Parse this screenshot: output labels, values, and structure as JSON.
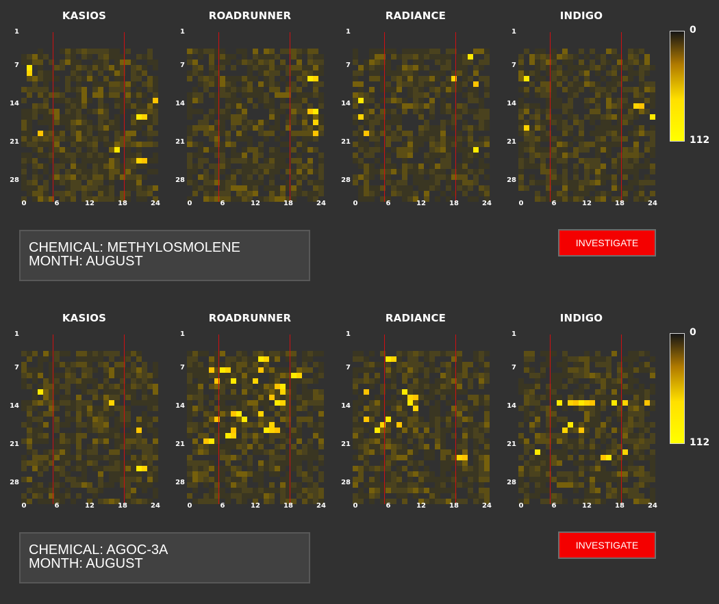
{
  "panels": [
    {
      "chemical_text": "CHEMICAL: METHYLOSMOLENE",
      "month_text": "MONTH: AUGUST",
      "button_label": "INVESTIGATE",
      "sensors": [
        {
          "name": "KASIOS",
          "hotspots": [
            [
              7,
              1
            ],
            [
              8,
              1
            ],
            [
              13,
              24
            ],
            [
              16,
              21
            ],
            [
              16,
              22
            ],
            [
              19,
              3
            ],
            [
              22,
              17
            ],
            [
              24,
              21
            ],
            [
              24,
              22
            ]
          ]
        },
        {
          "name": "ROADRUNNER",
          "hotspots": [
            [
              9,
              22
            ],
            [
              9,
              23
            ],
            [
              15,
              22
            ],
            [
              15,
              23
            ],
            [
              17,
              23
            ],
            [
              19,
              23
            ]
          ]
        },
        {
          "name": "RADIANCE",
          "hotspots": [
            [
              5,
              21
            ],
            [
              9,
              18
            ],
            [
              10,
              22
            ],
            [
              13,
              1
            ],
            [
              16,
              1
            ],
            [
              19,
              2
            ],
            [
              22,
              22
            ]
          ]
        },
        {
          "name": "INDIGO",
          "hotspots": [
            [
              9,
              1
            ],
            [
              14,
              21
            ],
            [
              14,
              22
            ],
            [
              16,
              24
            ],
            [
              18,
              1
            ]
          ]
        }
      ],
      "y_ticks": [
        "1",
        "7",
        "14",
        "21",
        "28"
      ],
      "x_ticks": [
        "0",
        "6",
        "12",
        "18",
        "24"
      ],
      "legend": {
        "min": "0",
        "max": "112"
      }
    },
    {
      "chemical_text": "CHEMICAL: AGOC-3A",
      "month_text": "MONTH: AUGUST",
      "button_label": "INVESTIGATE",
      "sensors": [
        {
          "name": "KASIOS",
          "hotspots": [
            [
              11,
              3
            ],
            [
              13,
              16
            ],
            [
              18,
              21
            ],
            [
              25,
              21
            ],
            [
              25,
              22
            ]
          ]
        },
        {
          "name": "ROADRUNNER",
          "hotspots": [
            [
              5,
              13
            ],
            [
              5,
              14
            ],
            [
              7,
              4
            ],
            [
              7,
              6
            ],
            [
              7,
              7
            ],
            [
              7,
              13
            ],
            [
              8,
              19
            ],
            [
              8,
              20
            ],
            [
              9,
              5
            ],
            [
              9,
              8
            ],
            [
              9,
              12
            ],
            [
              10,
              16
            ],
            [
              10,
              17
            ],
            [
              11,
              17
            ],
            [
              12,
              15
            ],
            [
              13,
              16
            ],
            [
              13,
              17
            ],
            [
              15,
              8
            ],
            [
              15,
              9
            ],
            [
              15,
              13
            ],
            [
              16,
              5
            ],
            [
              16,
              10
            ],
            [
              17,
              15
            ],
            [
              18,
              8
            ],
            [
              18,
              14
            ],
            [
              18,
              15
            ],
            [
              18,
              16
            ],
            [
              19,
              7
            ],
            [
              19,
              8
            ],
            [
              20,
              3
            ],
            [
              20,
              4
            ]
          ]
        },
        {
          "name": "RADIANCE",
          "hotspots": [
            [
              5,
              6
            ],
            [
              5,
              7
            ],
            [
              11,
              2
            ],
            [
              11,
              9
            ],
            [
              12,
              10
            ],
            [
              12,
              11
            ],
            [
              13,
              10
            ],
            [
              14,
              11
            ],
            [
              16,
              2
            ],
            [
              16,
              6
            ],
            [
              17,
              5
            ],
            [
              17,
              8
            ],
            [
              18,
              4
            ],
            [
              23,
              19
            ],
            [
              23,
              20
            ]
          ]
        },
        {
          "name": "INDIGO",
          "hotspots": [
            [
              13,
              7
            ],
            [
              13,
              9
            ],
            [
              13,
              10
            ],
            [
              13,
              11
            ],
            [
              13,
              12
            ],
            [
              13,
              13
            ],
            [
              13,
              17
            ],
            [
              13,
              19
            ],
            [
              13,
              23
            ],
            [
              17,
              9
            ],
            [
              18,
              8
            ],
            [
              18,
              11
            ],
            [
              22,
              3
            ],
            [
              22,
              19
            ],
            [
              23,
              15
            ],
            [
              23,
              16
            ]
          ]
        }
      ],
      "y_ticks": [
        "1",
        "7",
        "14",
        "21",
        "28"
      ],
      "x_ticks": [
        "0",
        "6",
        "12",
        "18",
        "24"
      ],
      "legend": {
        "min": "0",
        "max": "112"
      }
    }
  ]
}
